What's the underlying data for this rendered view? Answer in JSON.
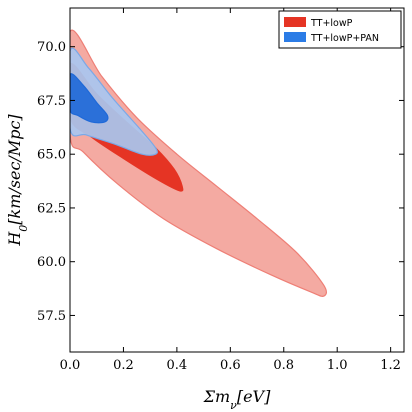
{
  "chart_data": {
    "type": "contour",
    "xlabel": "Σm_ν[eV]",
    "ylabel": "H_0[km/sec/Mpc]",
    "xlim": [
      0.0,
      1.25
    ],
    "ylim": [
      55.8,
      71.8
    ],
    "x_ticks": [
      "0.0",
      "0.2",
      "0.4",
      "0.6",
      "0.8",
      "1.0",
      "1.2"
    ],
    "y_ticks": [
      "57.5",
      "60.0",
      "62.5",
      "65.0",
      "67.5",
      "70.0"
    ],
    "legend_position": "top-right",
    "series": [
      {
        "name": "TT+lowP",
        "color": "#e53424",
        "contours": [
          {
            "level": "95%",
            "color": "#f4aaa2",
            "edge": "#ee7f76",
            "points": [
              [
                0.0,
                70.7
              ],
              [
                0.12,
                68.6
              ],
              [
                0.25,
                66.7
              ],
              [
                0.4,
                65.0
              ],
              [
                0.55,
                63.5
              ],
              [
                0.7,
                62.0
              ],
              [
                0.85,
                60.4
              ],
              [
                0.95,
                58.9
              ],
              [
                0.95,
                58.4
              ],
              [
                0.9,
                58.6
              ],
              [
                0.75,
                59.4
              ],
              [
                0.55,
                60.6
              ],
              [
                0.35,
                62.0
              ],
              [
                0.18,
                63.6
              ],
              [
                0.05,
                65.1
              ],
              [
                0.0,
                65.9
              ]
            ]
          },
          {
            "level": "68%",
            "color": "#e53424",
            "edge": "#e53424",
            "points": [
              [
                0.0,
                69.2
              ],
              [
                0.1,
                67.8
              ],
              [
                0.22,
                66.4
              ],
              [
                0.32,
                65.3
              ],
              [
                0.39,
                64.3
              ],
              [
                0.42,
                63.5
              ],
              [
                0.41,
                63.3
              ],
              [
                0.33,
                63.8
              ],
              [
                0.2,
                64.8
              ],
              [
                0.08,
                65.8
              ],
              [
                0.0,
                66.7
              ]
            ]
          }
        ]
      },
      {
        "name": "TT+lowP+PAN",
        "color": "#2b7ce6",
        "contours": [
          {
            "level": "95%",
            "color": "#a8c7f0",
            "edge": "#7aa9e8",
            "points": [
              [
                0.0,
                69.8
              ],
              [
                0.07,
                69.0
              ],
              [
                0.16,
                67.6
              ],
              [
                0.26,
                66.2
              ],
              [
                0.32,
                65.3
              ],
              [
                0.32,
                65.0
              ],
              [
                0.27,
                65.0
              ],
              [
                0.16,
                65.5
              ],
              [
                0.06,
                65.9
              ],
              [
                0.0,
                66.2
              ]
            ]
          },
          {
            "level": "68%",
            "color": "#1f69d8",
            "edge": "#1f69d8",
            "points": [
              [
                0.0,
                68.7
              ],
              [
                0.05,
                68.2
              ],
              [
                0.1,
                67.4
              ],
              [
                0.14,
                66.8
              ],
              [
                0.13,
                66.5
              ],
              [
                0.08,
                66.5
              ],
              [
                0.03,
                66.8
              ],
              [
                0.0,
                67.1
              ]
            ]
          }
        ]
      }
    ]
  }
}
